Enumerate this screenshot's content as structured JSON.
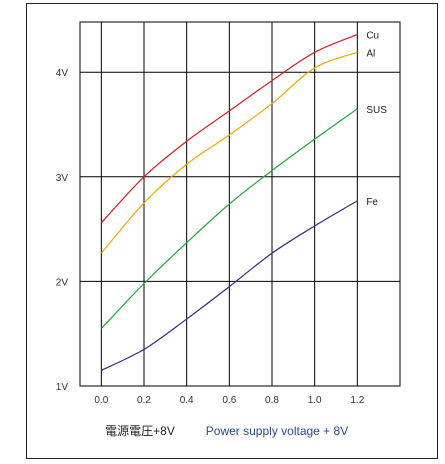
{
  "chart_data": {
    "type": "line",
    "title": "",
    "xlabel_jp": "電源電圧+8V",
    "xlabel_en": "Power supply voltage + 8V",
    "ylabel": "",
    "x_ticks": [
      "0.0",
      "0.2",
      "0.4",
      "0.6",
      "0.8",
      "1.0",
      "1.2"
    ],
    "y_ticks": [
      "1V",
      "2V",
      "3V",
      "4V"
    ],
    "xlim": [
      -0.1,
      1.4
    ],
    "ylim": [
      1.0,
      4.48
    ],
    "grid": true,
    "legend": "inline labels at line ends",
    "series": [
      {
        "name": "Cu",
        "color": "#e01b24",
        "x": [
          0.0,
          0.2,
          0.4,
          0.6,
          0.8,
          1.0,
          1.2
        ],
        "y": [
          2.56,
          3.0,
          3.34,
          3.63,
          3.92,
          4.19,
          4.36
        ]
      },
      {
        "name": "Al",
        "color": "#f0a800",
        "x": [
          0.0,
          0.2,
          0.4,
          0.6,
          0.8,
          1.0,
          1.2
        ],
        "y": [
          2.27,
          2.75,
          3.12,
          3.4,
          3.7,
          4.04,
          4.19
        ]
      },
      {
        "name": "SUS",
        "color": "#1ea83a",
        "x": [
          0.0,
          0.2,
          0.4,
          0.6,
          0.8,
          1.0,
          1.2
        ],
        "y": [
          1.55,
          1.98,
          2.37,
          2.74,
          3.06,
          3.36,
          3.65
        ]
      },
      {
        "name": "Fe",
        "color": "#2b2e8a",
        "x": [
          0.0,
          0.2,
          0.4,
          0.6,
          0.8,
          1.0,
          1.2
        ],
        "y": [
          1.15,
          1.35,
          1.64,
          1.95,
          2.27,
          2.53,
          2.77
        ]
      }
    ]
  }
}
